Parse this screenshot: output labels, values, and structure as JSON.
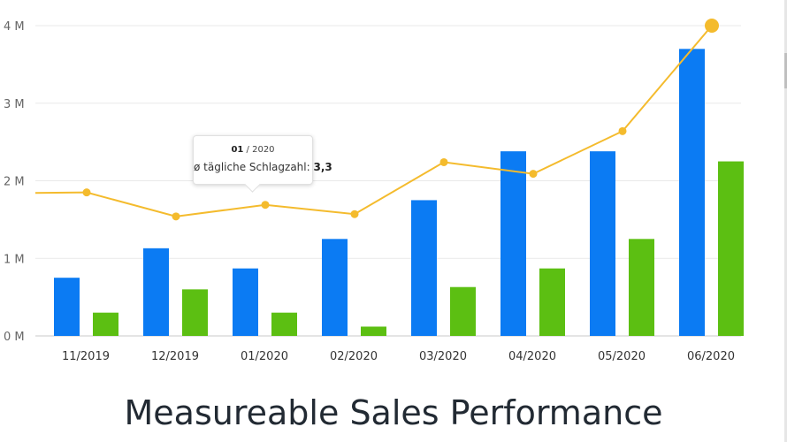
{
  "chart_data": {
    "type": "bar",
    "categories": [
      "11/2019",
      "12/2019",
      "01/2020",
      "02/2020",
      "03/2020",
      "04/2020",
      "05/2020",
      "06/2020"
    ],
    "y_ticks": [
      {
        "value": 0,
        "label": "0 M"
      },
      {
        "value": 1000000,
        "label": "1 M"
      },
      {
        "value": 2000000,
        "label": "2 M"
      },
      {
        "value": 3000000,
        "label": "3 M"
      },
      {
        "value": 4000000,
        "label": "4 M"
      }
    ],
    "ylim": [
      0,
      4000000
    ],
    "grid": true,
    "series": [
      {
        "type": "bar",
        "color": "#0b7bf3",
        "values": [
          750000,
          1130000,
          870000,
          1250000,
          1750000,
          2380000,
          2380000,
          3700000
        ]
      },
      {
        "type": "bar",
        "color": "#5cbf12",
        "values": [
          300000,
          600000,
          300000,
          120000,
          630000,
          870000,
          1250000,
          2250000
        ]
      },
      {
        "type": "line",
        "color": "#f4bb2d",
        "values": [
          1850000,
          1540000,
          1690000,
          1570000,
          2240000,
          2090000,
          2640000,
          4000000
        ]
      }
    ],
    "title": "",
    "xlabel": "",
    "ylabel": ""
  },
  "tooltip": {
    "month": "01",
    "year": "/ 2020",
    "label": "ø tägliche Schlagzahl:",
    "value": "3,3"
  },
  "headline": "Measureable Sales Performance"
}
